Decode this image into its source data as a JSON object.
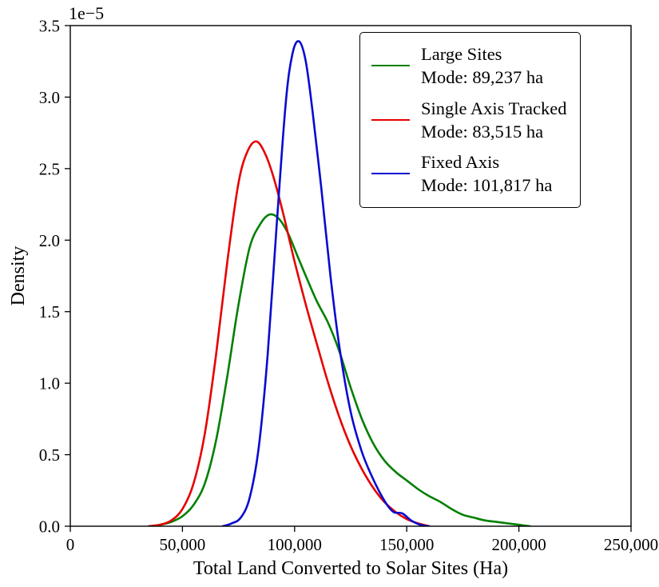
{
  "figure": {
    "background": "#ffffff",
    "offset_text": "1e−5"
  },
  "chart_data": {
    "type": "line",
    "subtype": "kde-density",
    "title": "",
    "xlabel": "Total Land Converted to Solar Sites (Ha)",
    "ylabel": "Density",
    "xlim": [
      0,
      250000
    ],
    "ylim": [
      0,
      3.5
    ],
    "y_units": "1e-5",
    "grid": false,
    "legend_position": "upper right",
    "x_ticks": [
      {
        "value": 0,
        "label": "0"
      },
      {
        "value": 50000,
        "label": "50,000"
      },
      {
        "value": 100000,
        "label": "100,000"
      },
      {
        "value": 150000,
        "label": "150,000"
      },
      {
        "value": 200000,
        "label": "200,000"
      },
      {
        "value": 250000,
        "label": "250,000"
      }
    ],
    "y_ticks": [
      {
        "value": 0.0,
        "label": "0.0"
      },
      {
        "value": 0.5,
        "label": "0.5"
      },
      {
        "value": 1.0,
        "label": "1.0"
      },
      {
        "value": 1.5,
        "label": "1.5"
      },
      {
        "value": 2.0,
        "label": "2.0"
      },
      {
        "value": 2.5,
        "label": "2.5"
      },
      {
        "value": 3.0,
        "label": "3.0"
      },
      {
        "value": 3.5,
        "label": "3.5"
      }
    ],
    "series": [
      {
        "name": "Large Sites",
        "mode_label": "Mode: 89,237 ha",
        "mode_value_ha": 89237,
        "color": "#008000",
        "x": [
          35000,
          40000,
          45000,
          50000,
          55000,
          60000,
          65000,
          70000,
          75000,
          80000,
          85000,
          89000,
          93000,
          97000,
          101000,
          105000,
          110000,
          115000,
          120000,
          125000,
          130000,
          135000,
          140000,
          145000,
          150000,
          155000,
          160000,
          165000,
          170000,
          175000,
          180000,
          185000,
          190000,
          195000,
          200000,
          205000
        ],
        "y": [
          0,
          0.01,
          0.03,
          0.07,
          0.15,
          0.3,
          0.6,
          1.05,
          1.55,
          1.95,
          2.12,
          2.18,
          2.15,
          2.05,
          1.9,
          1.75,
          1.57,
          1.42,
          1.22,
          0.97,
          0.75,
          0.58,
          0.46,
          0.38,
          0.32,
          0.26,
          0.21,
          0.17,
          0.12,
          0.08,
          0.06,
          0.04,
          0.03,
          0.02,
          0.01,
          0
        ]
      },
      {
        "name": "Single Axis Tracked",
        "mode_label": "Mode: 83,515 ha",
        "mode_value_ha": 83515,
        "color": "#e60000",
        "x": [
          35000,
          40000,
          45000,
          50000,
          55000,
          60000,
          65000,
          70000,
          75000,
          79000,
          83000,
          87000,
          91000,
          95000,
          100000,
          105000,
          110000,
          115000,
          120000,
          125000,
          130000,
          135000,
          140000,
          145000,
          150000,
          155000,
          160000
        ],
        "y": [
          0,
          0.01,
          0.04,
          0.12,
          0.3,
          0.65,
          1.2,
          1.85,
          2.4,
          2.62,
          2.69,
          2.6,
          2.42,
          2.18,
          1.85,
          1.55,
          1.27,
          1.0,
          0.76,
          0.56,
          0.4,
          0.27,
          0.17,
          0.1,
          0.05,
          0.02,
          0
        ]
      },
      {
        "name": "Fixed Axis",
        "mode_label": "Mode: 101,817 ha",
        "mode_value_ha": 101817,
        "color": "#0a0ad1",
        "x": [
          68000,
          72000,
          76000,
          80000,
          84000,
          88000,
          92000,
          96000,
          99000,
          102000,
          105000,
          108000,
          112000,
          116000,
          120000,
          125000,
          130000,
          135000,
          140000,
          144000,
          148000,
          152000,
          156000,
          160000
        ],
        "y": [
          0,
          0.02,
          0.06,
          0.2,
          0.55,
          1.2,
          2.1,
          2.95,
          3.3,
          3.39,
          3.25,
          2.9,
          2.35,
          1.75,
          1.25,
          0.8,
          0.52,
          0.33,
          0.18,
          0.1,
          0.09,
          0.04,
          0.01,
          0
        ]
      }
    ]
  }
}
